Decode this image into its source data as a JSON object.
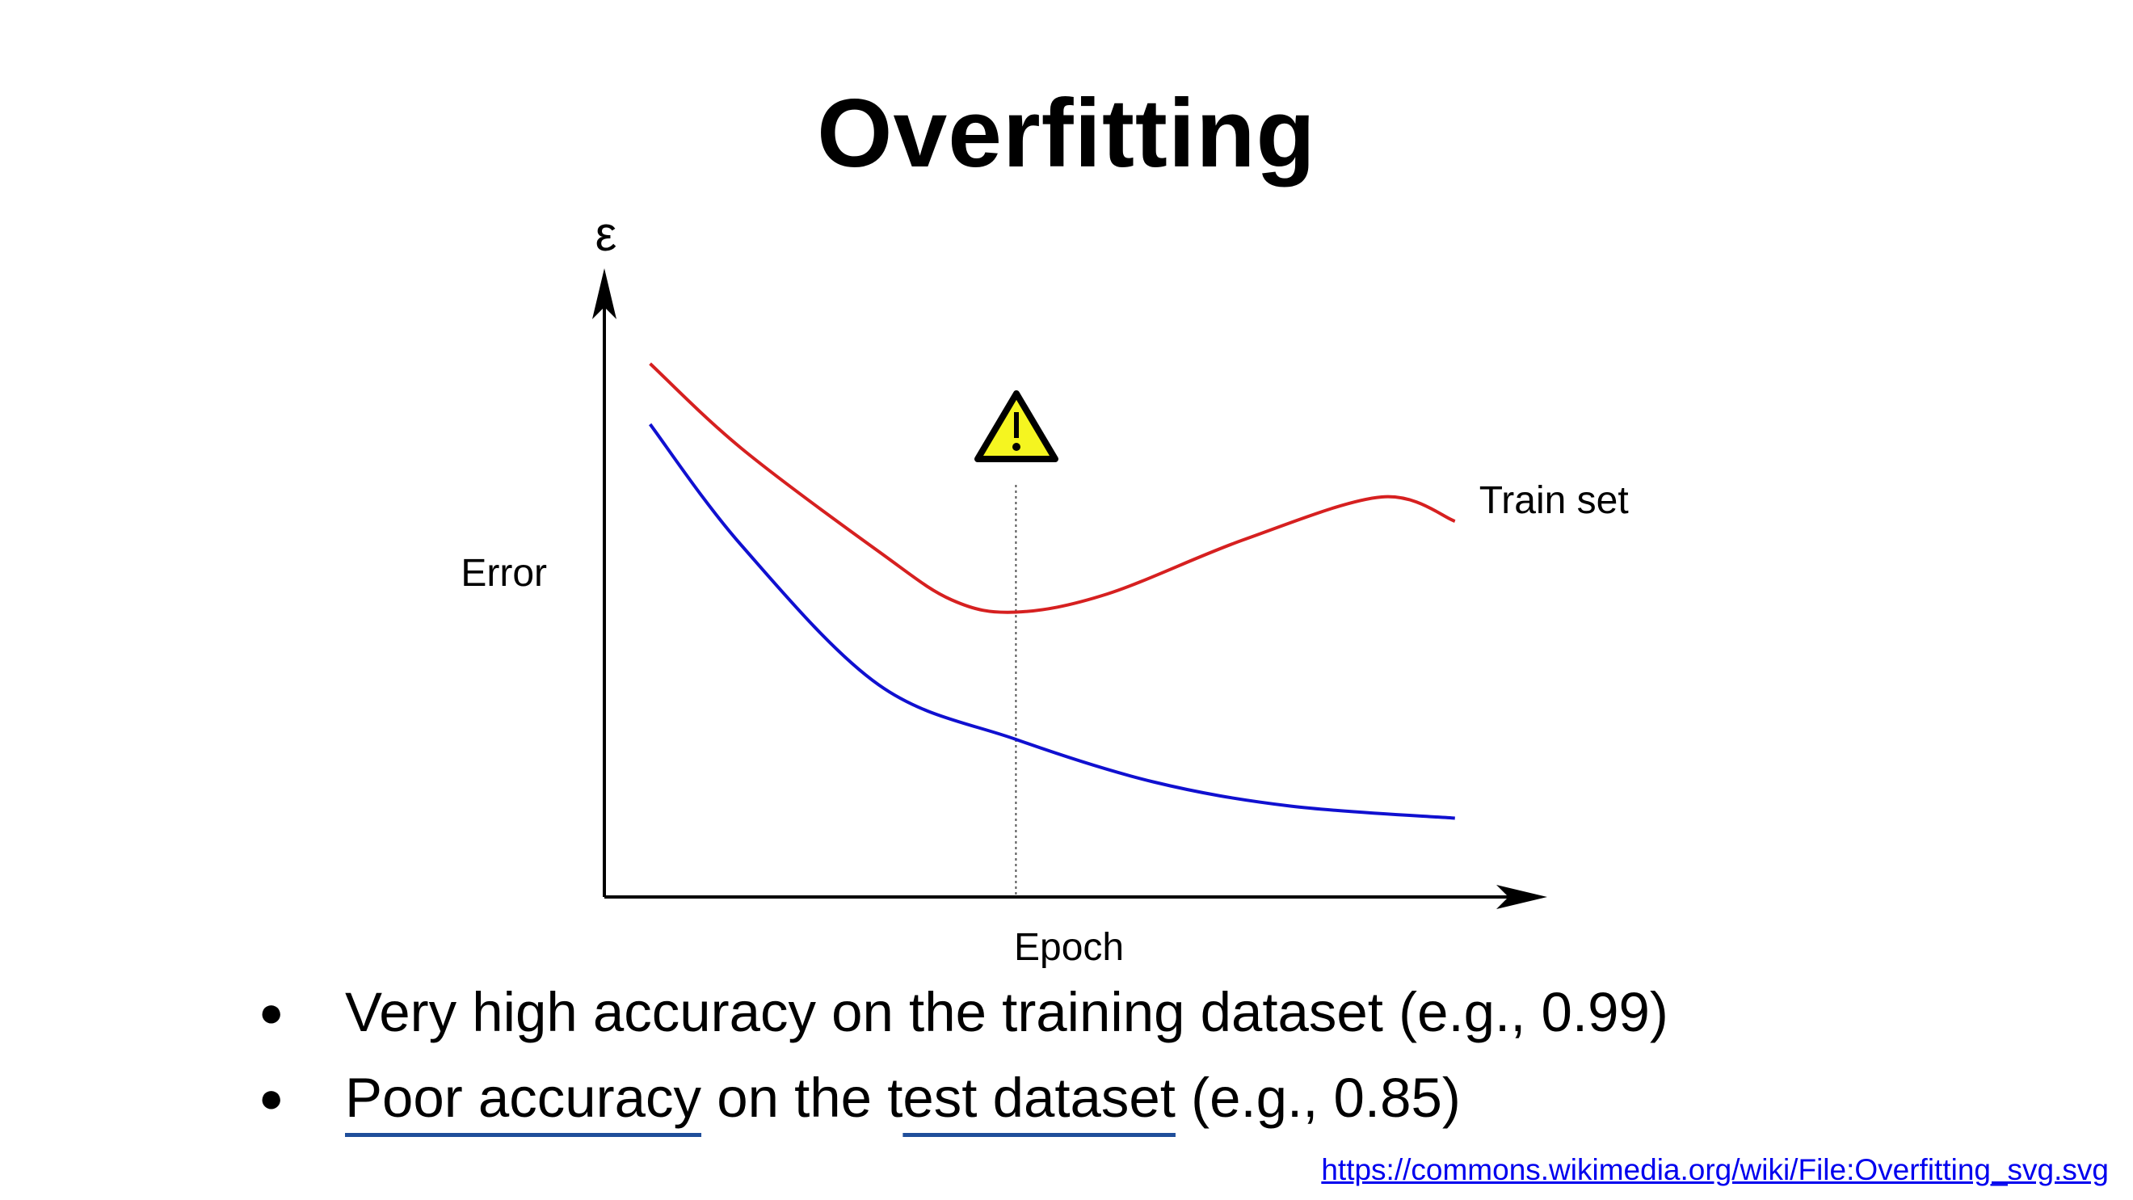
{
  "slide": {
    "title": "Overfitting",
    "bullets": [
      {
        "text": "Very high accuracy on the training dataset (e.g., 0.99)"
      },
      {
        "underlined_1": "Poor accuracy",
        "middle": " on the ",
        "prefix_plain": "t",
        "underlined_2": "est dataset",
        "suffix": " (e.g., 0.85)"
      }
    ],
    "source_link": "https://commons.wikimedia.org/wiki/File:Overfitting_svg.svg",
    "bullet_symbol": "●"
  },
  "chart_data": {
    "type": "line",
    "title": "",
    "xlabel": "Epoch",
    "ylabel": "Error",
    "y_axis_symbol": "ε",
    "warning_icon": "warning-icon",
    "annotation_line_at_x": 0.45,
    "xlim": [
      0,
      1
    ],
    "ylim": [
      0,
      1
    ],
    "grid": false,
    "series": [
      {
        "name": "Train set",
        "color": "#d62020",
        "x": [
          0.05,
          0.15,
          0.3,
          0.38,
          0.45,
          0.55,
          0.7,
          0.85,
          0.93
        ],
        "y": [
          0.88,
          0.74,
          0.57,
          0.49,
          0.47,
          0.5,
          0.59,
          0.66,
          0.62
        ]
      },
      {
        "color": "#1010d0",
        "x": [
          0.05,
          0.15,
          0.3,
          0.45,
          0.6,
          0.75,
          0.93
        ],
        "y": [
          0.78,
          0.58,
          0.35,
          0.26,
          0.19,
          0.15,
          0.13
        ]
      }
    ]
  }
}
